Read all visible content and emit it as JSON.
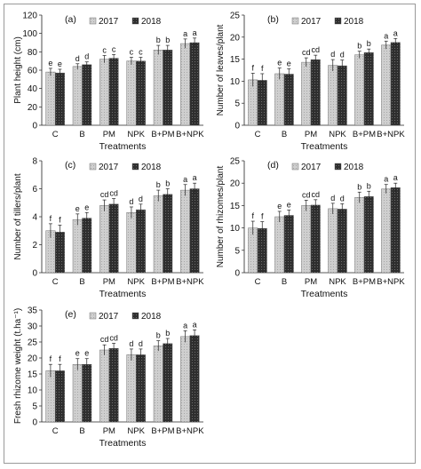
{
  "figure": {
    "panels": [
      {
        "key": "a"
      },
      {
        "key": "b"
      },
      {
        "key": "c"
      },
      {
        "key": "d"
      },
      {
        "key": "e"
      }
    ]
  },
  "chart_data": [
    {
      "type": "bar",
      "panel_label": "(a)",
      "categories": [
        "C",
        "B",
        "PM",
        "NPK",
        "B+PM",
        "B+NPK"
      ],
      "series": [
        {
          "name": "2017",
          "values": [
            58,
            64,
            72,
            70,
            82,
            89
          ],
          "errors": [
            4,
            3,
            4,
            4,
            5,
            5
          ],
          "letters": [
            "e",
            "d",
            "c",
            "c",
            "b",
            "a"
          ],
          "color": "#c8c8c8"
        },
        {
          "name": "2018",
          "values": [
            57,
            66,
            73,
            70,
            82,
            90
          ],
          "errors": [
            4,
            3,
            4,
            4,
            5,
            5
          ],
          "letters": [
            "e",
            "d",
            "c",
            "c",
            "b",
            "a"
          ],
          "color": "#3a3a3a"
        }
      ],
      "xlabel": "Treatments",
      "ylabel": "Plant height (cm)",
      "ylim": [
        0,
        120
      ],
      "yticks": [
        0,
        20,
        40,
        60,
        80,
        100,
        120
      ],
      "legend": "top-left"
    },
    {
      "type": "bar",
      "panel_label": "(b)",
      "categories": [
        "C",
        "B",
        "PM",
        "NPK",
        "B+PM",
        "B+NPK"
      ],
      "series": [
        {
          "name": "2017",
          "values": [
            10.3,
            11.7,
            14.3,
            13.6,
            16.0,
            18.2
          ],
          "errors": [
            1.5,
            1.3,
            1.0,
            1.3,
            0.8,
            0.9
          ],
          "letters": [
            "f",
            "e",
            "cd",
            "d",
            "b",
            "a"
          ],
          "color": "#c8c8c8"
        },
        {
          "name": "2018",
          "values": [
            10.2,
            11.6,
            14.9,
            13.5,
            16.5,
            18.8
          ],
          "errors": [
            1.5,
            1.2,
            1.0,
            1.3,
            0.8,
            0.9
          ],
          "letters": [
            "f",
            "e",
            "cd",
            "d",
            "b",
            "a"
          ],
          "color": "#3a3a3a"
        }
      ],
      "xlabel": "Treatments",
      "ylabel": "Number of leaves/plant",
      "ylim": [
        0,
        25
      ],
      "yticks": [
        0,
        5,
        10,
        15,
        20,
        25
      ],
      "legend": "top-left"
    },
    {
      "type": "bar",
      "panel_label": "(c)",
      "categories": [
        "C",
        "B",
        "PM",
        "NPK",
        "B+PM",
        "B+NPK"
      ],
      "series": [
        {
          "name": "2017",
          "values": [
            3.0,
            3.8,
            4.8,
            4.3,
            5.5,
            5.9
          ],
          "errors": [
            0.5,
            0.4,
            0.4,
            0.4,
            0.4,
            0.4
          ],
          "letters": [
            "f",
            "e",
            "cd",
            "d",
            "b",
            "a"
          ],
          "color": "#c8c8c8"
        },
        {
          "name": "2018",
          "values": [
            2.9,
            3.9,
            4.9,
            4.5,
            5.6,
            6.0
          ],
          "errors": [
            0.5,
            0.4,
            0.4,
            0.4,
            0.4,
            0.4
          ],
          "letters": [
            "f",
            "e",
            "cd",
            "d",
            "b",
            "a"
          ],
          "color": "#3a3a3a"
        }
      ],
      "xlabel": "Treatments",
      "ylabel": "Number of tillers/plant",
      "ylim": [
        0,
        8
      ],
      "yticks": [
        0,
        2,
        4,
        6,
        8
      ],
      "legend": "top-left"
    },
    {
      "type": "bar",
      "panel_label": "(d)",
      "categories": [
        "C",
        "B",
        "PM",
        "NPK",
        "B+PM",
        "B+NPK"
      ],
      "series": [
        {
          "name": "2017",
          "values": [
            10.0,
            12.5,
            15.0,
            14.3,
            16.8,
            18.7
          ],
          "errors": [
            1.5,
            1.2,
            1.2,
            1.2,
            1.2,
            1.0
          ],
          "letters": [
            "f",
            "e",
            "cd",
            "d",
            "b",
            "a"
          ],
          "color": "#c8c8c8"
        },
        {
          "name": "2018",
          "values": [
            9.9,
            12.8,
            15.1,
            14.2,
            17.0,
            19.0
          ],
          "errors": [
            1.5,
            1.2,
            1.2,
            1.2,
            1.2,
            1.0
          ],
          "letters": [
            "f",
            "e",
            "cd",
            "d",
            "b",
            "a"
          ],
          "color": "#3a3a3a"
        }
      ],
      "xlabel": "Treatments",
      "ylabel": "Number of rhizomes/plant",
      "ylim": [
        0,
        25
      ],
      "yticks": [
        0,
        5,
        10,
        15,
        20,
        25
      ],
      "legend": "top-left"
    },
    {
      "type": "bar",
      "panel_label": "(e)",
      "categories": [
        "C",
        "B",
        "PM",
        "NPK",
        "B+PM",
        "B+NPK"
      ],
      "series": [
        {
          "name": "2017",
          "values": [
            16.0,
            18.0,
            22.5,
            21.0,
            23.8,
            26.7
          ],
          "errors": [
            2.0,
            1.8,
            1.6,
            1.8,
            1.6,
            1.8
          ],
          "letters": [
            "f",
            "e",
            "cd",
            "d",
            "b",
            "a"
          ],
          "color": "#c8c8c8"
        },
        {
          "name": "2018",
          "values": [
            16.0,
            18.0,
            23.0,
            21.0,
            24.5,
            27.0
          ],
          "errors": [
            2.0,
            1.8,
            1.6,
            1.8,
            1.6,
            1.8
          ],
          "letters": [
            "f",
            "e",
            "cd",
            "d",
            "b",
            "a"
          ],
          "color": "#3a3a3a"
        }
      ],
      "xlabel": "Treatments",
      "ylabel": "Fresh rhizome weight (t.ha⁻¹)",
      "ylim": [
        0,
        35
      ],
      "yticks": [
        0,
        5,
        10,
        15,
        20,
        25,
        30,
        35
      ],
      "legend": "top-left"
    }
  ]
}
